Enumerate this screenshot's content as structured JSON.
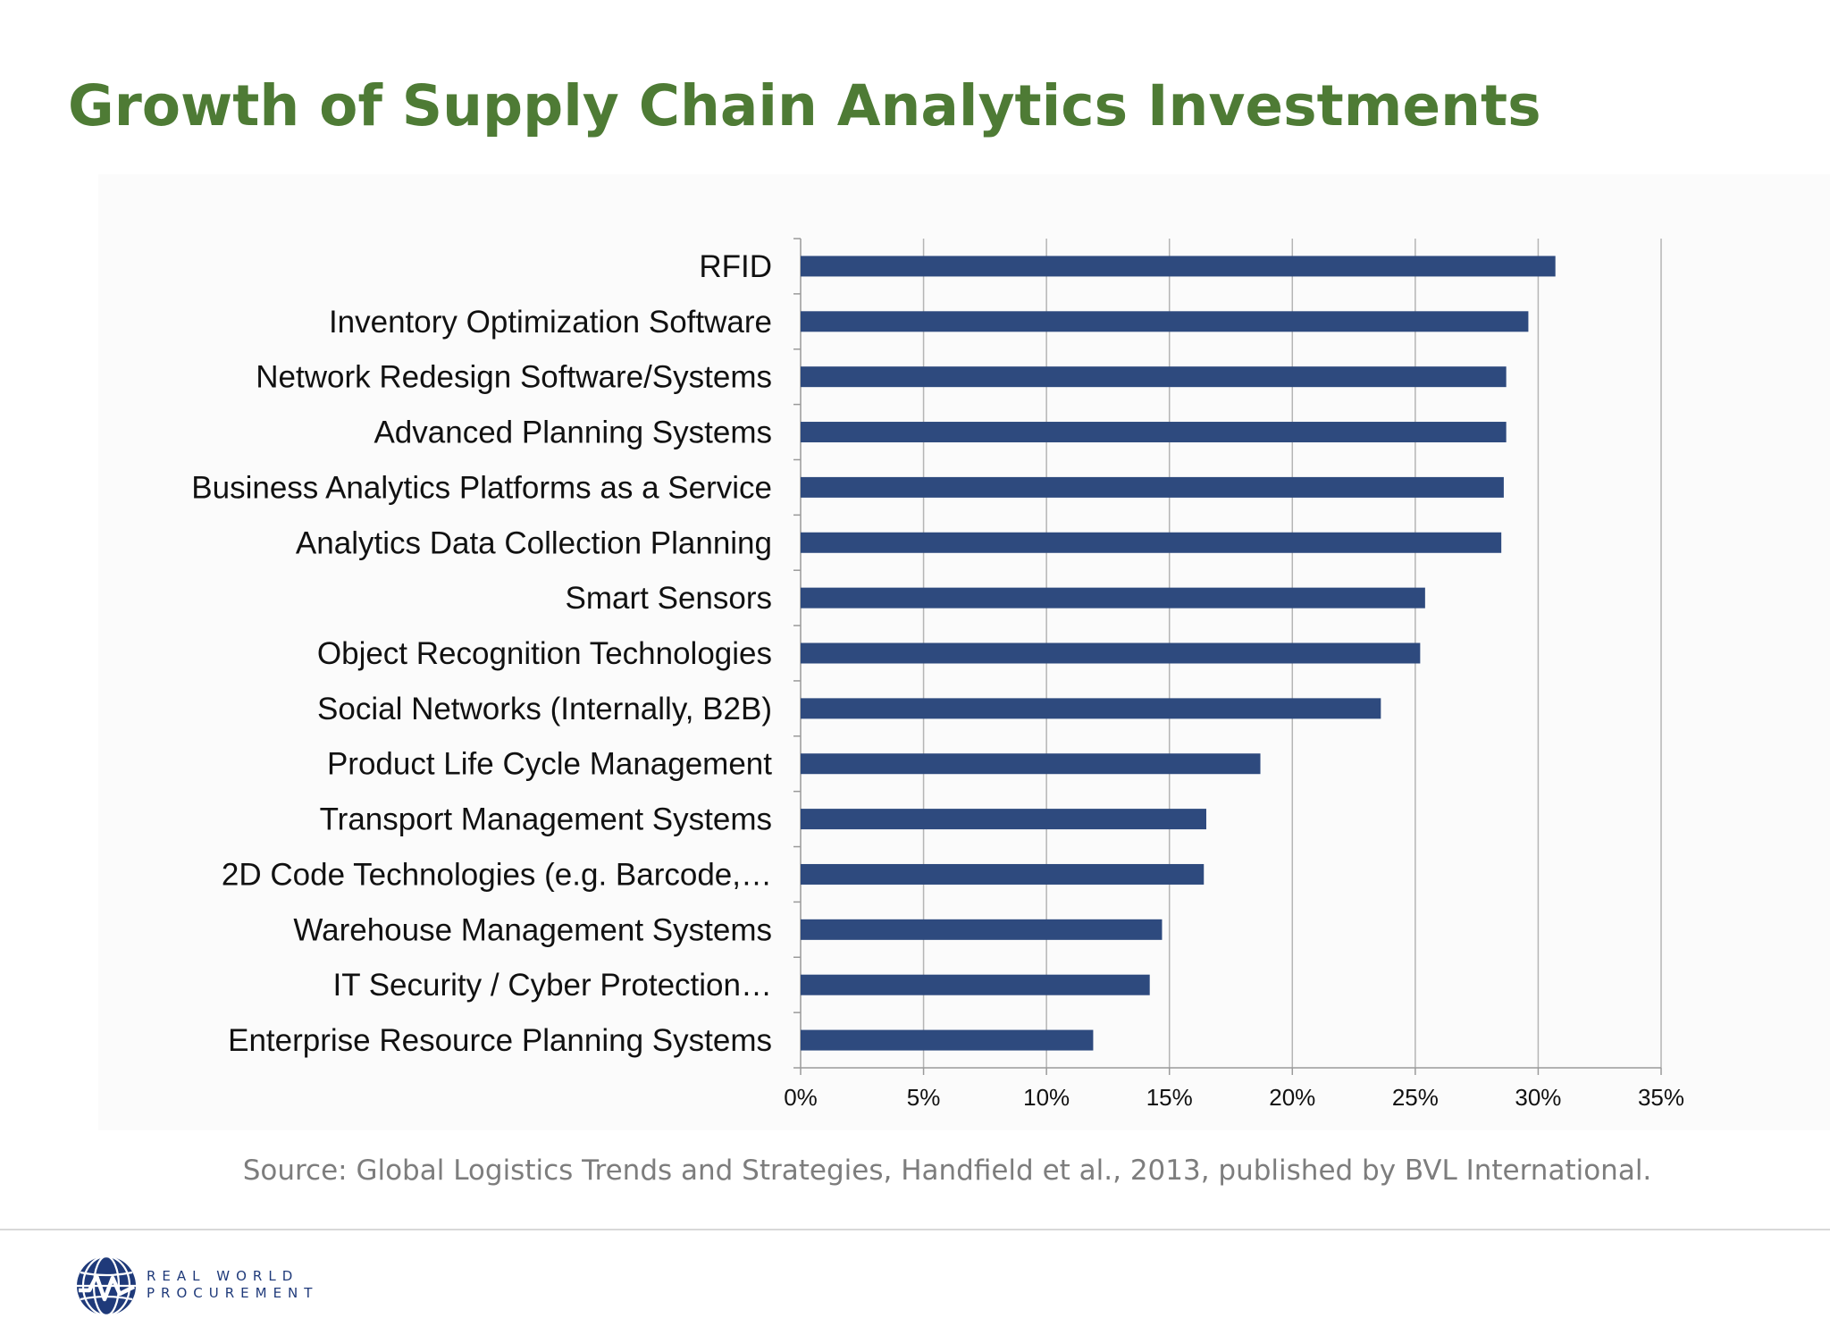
{
  "page": {
    "title": "Growth of Supply Chain Analytics Investments",
    "source": "Source:  Global Logistics Trends and Strategies, Handfield et al., 2013, published by BVL International.",
    "logo": {
      "line1": "REAL WORLD",
      "line2": "PROCUREMENT"
    }
  },
  "colors": {
    "title": "#4e7b35",
    "bar": "#2e4a7e",
    "grid": "#b5b5b5",
    "source": "#7d7d7d",
    "logo": "#1f3a7a"
  },
  "chart_data": {
    "type": "bar",
    "orientation": "horizontal",
    "categories": [
      "RFID",
      "Inventory Optimization Software",
      "Network Redesign Software/Systems",
      "Advanced Planning Systems",
      "Business Analytics Platforms as a Service",
      "Analytics Data Collection Planning",
      "Smart Sensors",
      "Object Recognition Technologies",
      "Social Networks (Internally, B2B)",
      "Product Life Cycle Management",
      "Transport Management Systems",
      "2D Code Technologies (e.g. Barcode,…",
      "Warehouse Management Systems",
      "IT Security / Cyber Protection…",
      "Enterprise Resource Planning Systems"
    ],
    "values": [
      30.7,
      29.6,
      28.7,
      28.7,
      28.6,
      28.5,
      25.4,
      25.2,
      23.6,
      18.7,
      16.5,
      16.4,
      14.7,
      14.2,
      11.9
    ],
    "xlim": [
      0,
      35
    ],
    "x_ticks": [
      "0%",
      "5%",
      "10%",
      "15%",
      "20%",
      "25%",
      "30%",
      "35%"
    ],
    "x_tick_values": [
      0,
      5,
      10,
      15,
      20,
      25,
      30,
      35
    ],
    "grid": true,
    "legend": "none"
  }
}
